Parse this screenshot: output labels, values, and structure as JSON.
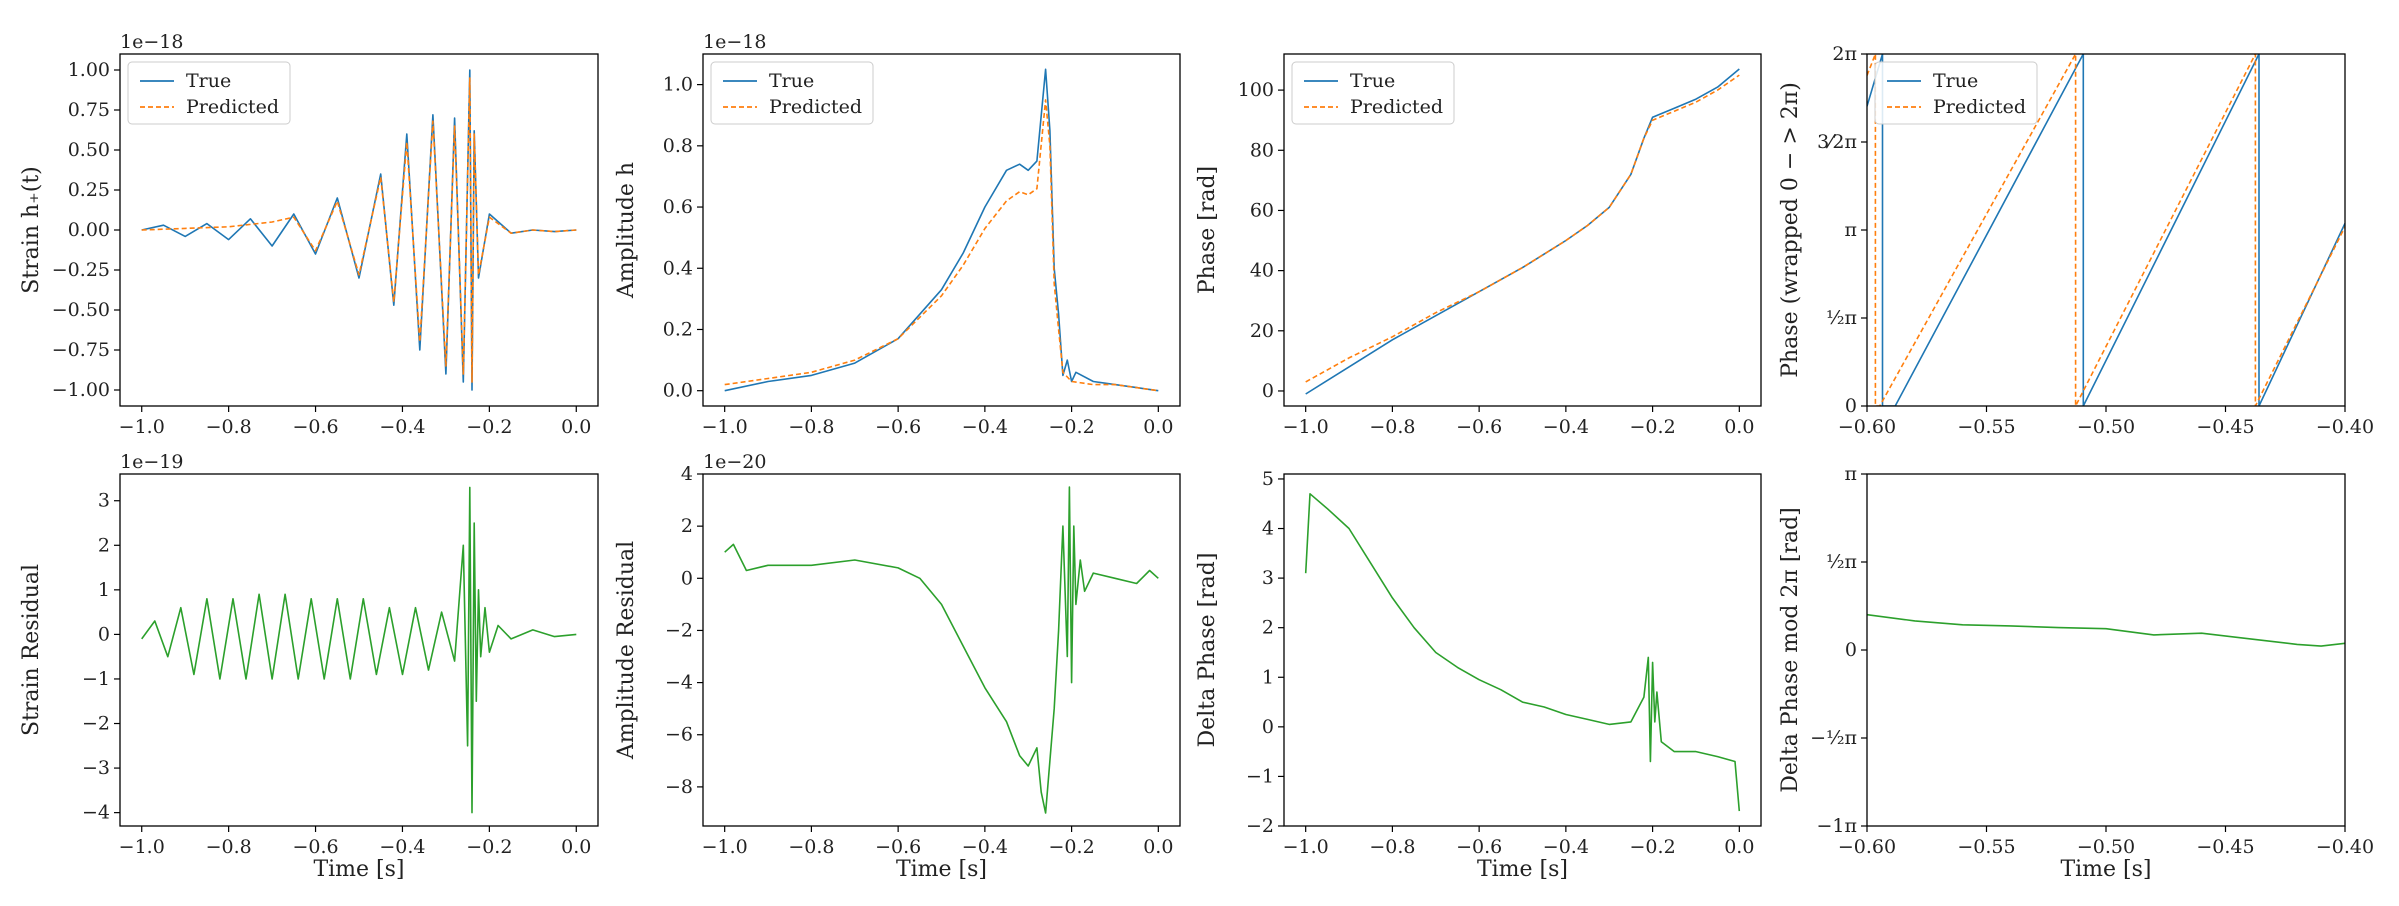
{
  "colors": {
    "true": "#1f77b4",
    "predicted": "#ff7f0e",
    "residual": "#2ca02c"
  },
  "legend": {
    "true_label": "True",
    "predicted_label": "Predicted"
  },
  "chart_data": [
    {
      "id": "strain",
      "type": "line",
      "ylabel": "Strain h₊(t)",
      "xlabel": "",
      "offset_text": "1e−18",
      "xlim": [
        -1.05,
        0.05
      ],
      "ylim": [
        -1.1,
        1.1
      ],
      "xticks": [
        -1.0,
        -0.8,
        -0.6,
        -0.4,
        -0.2,
        0.0
      ],
      "xtick_labels": [
        "−1.0",
        "−0.8",
        "−0.6",
        "−0.4",
        "−0.2",
        "0.0"
      ],
      "yticks": [
        -1.0,
        -0.75,
        -0.5,
        -0.25,
        0.0,
        0.25,
        0.5,
        0.75,
        1.0
      ],
      "ytick_labels": [
        "−1.00",
        "−0.75",
        "−0.50",
        "−0.25",
        "0.00",
        "0.25",
        "0.50",
        "0.75",
        "1.00"
      ],
      "legend": true,
      "series": [
        {
          "name": "True",
          "style": "solid",
          "color_key": "true",
          "x": [
            -1.0,
            -0.95,
            -0.9,
            -0.85,
            -0.8,
            -0.75,
            -0.7,
            -0.65,
            -0.6,
            -0.55,
            -0.5,
            -0.45,
            -0.42,
            -0.39,
            -0.36,
            -0.33,
            -0.3,
            -0.28,
            -0.26,
            -0.245,
            -0.24,
            -0.235,
            -0.225,
            -0.2,
            -0.15,
            -0.1,
            -0.05,
            0.0
          ],
          "y": [
            0.0,
            0.03,
            -0.04,
            0.04,
            -0.06,
            0.07,
            -0.1,
            0.1,
            -0.15,
            0.2,
            -0.3,
            0.35,
            -0.47,
            0.6,
            -0.75,
            0.72,
            -0.9,
            0.7,
            -0.95,
            1.0,
            -1.0,
            0.62,
            -0.3,
            0.1,
            -0.02,
            0.0,
            -0.01,
            0.0
          ]
        },
        {
          "name": "Predicted",
          "style": "dashed",
          "color_key": "predicted",
          "x": [
            -1.0,
            -0.9,
            -0.8,
            -0.7,
            -0.65,
            -0.6,
            -0.55,
            -0.5,
            -0.45,
            -0.42,
            -0.39,
            -0.36,
            -0.33,
            -0.3,
            -0.28,
            -0.26,
            -0.245,
            -0.24,
            -0.235,
            -0.225,
            -0.2,
            -0.15,
            -0.1,
            -0.05,
            0.0
          ],
          "y": [
            0.0,
            0.01,
            0.02,
            0.05,
            0.08,
            -0.13,
            0.18,
            -0.28,
            0.33,
            -0.45,
            0.55,
            -0.7,
            0.68,
            -0.85,
            0.65,
            -0.9,
            0.95,
            -0.95,
            0.6,
            -0.28,
            0.08,
            -0.02,
            0.0,
            -0.01,
            0.0
          ]
        }
      ]
    },
    {
      "id": "amplitude",
      "type": "line",
      "ylabel": "Amplitude h",
      "xlabel": "",
      "offset_text": "1e−18",
      "xlim": [
        -1.05,
        0.05
      ],
      "ylim": [
        -0.05,
        1.1
      ],
      "xticks": [
        -1.0,
        -0.8,
        -0.6,
        -0.4,
        -0.2,
        0.0
      ],
      "xtick_labels": [
        "−1.0",
        "−0.8",
        "−0.6",
        "−0.4",
        "−0.2",
        "0.0"
      ],
      "yticks": [
        0.0,
        0.2,
        0.4,
        0.6,
        0.8,
        1.0
      ],
      "ytick_labels": [
        "0.0",
        "0.2",
        "0.4",
        "0.6",
        "0.8",
        "1.0"
      ],
      "legend": true,
      "series": [
        {
          "name": "True",
          "style": "solid",
          "color_key": "true",
          "x": [
            -1.0,
            -0.9,
            -0.8,
            -0.7,
            -0.6,
            -0.5,
            -0.45,
            -0.4,
            -0.35,
            -0.32,
            -0.3,
            -0.28,
            -0.26,
            -0.25,
            -0.24,
            -0.23,
            -0.22,
            -0.21,
            -0.2,
            -0.19,
            -0.15,
            -0.1,
            -0.05,
            0.0
          ],
          "y": [
            0.0,
            0.03,
            0.05,
            0.09,
            0.17,
            0.33,
            0.45,
            0.6,
            0.72,
            0.74,
            0.72,
            0.75,
            1.05,
            0.85,
            0.4,
            0.25,
            0.05,
            0.1,
            0.03,
            0.06,
            0.03,
            0.02,
            0.01,
            0.0
          ]
        },
        {
          "name": "Predicted",
          "style": "dashed",
          "color_key": "predicted",
          "x": [
            -1.0,
            -0.9,
            -0.8,
            -0.7,
            -0.6,
            -0.5,
            -0.45,
            -0.4,
            -0.35,
            -0.32,
            -0.3,
            -0.28,
            -0.26,
            -0.25,
            -0.24,
            -0.23,
            -0.22,
            -0.2,
            -0.15,
            -0.1,
            -0.05,
            0.0
          ],
          "y": [
            0.02,
            0.04,
            0.06,
            0.1,
            0.17,
            0.31,
            0.41,
            0.53,
            0.62,
            0.65,
            0.64,
            0.66,
            0.95,
            0.8,
            0.35,
            0.2,
            0.06,
            0.03,
            0.02,
            0.02,
            0.01,
            0.0
          ]
        }
      ]
    },
    {
      "id": "phase",
      "type": "line",
      "ylabel": "Phase [rad]",
      "xlabel": "",
      "offset_text": "",
      "xlim": [
        -1.05,
        0.05
      ],
      "ylim": [
        -5,
        112
      ],
      "xticks": [
        -1.0,
        -0.8,
        -0.6,
        -0.4,
        -0.2,
        0.0
      ],
      "xtick_labels": [
        "−1.0",
        "−0.8",
        "−0.6",
        "−0.4",
        "−0.2",
        "0.0"
      ],
      "yticks": [
        0,
        20,
        40,
        60,
        80,
        100
      ],
      "ytick_labels": [
        "0",
        "20",
        "40",
        "60",
        "80",
        "100"
      ],
      "legend": true,
      "series": [
        {
          "name": "True",
          "style": "solid",
          "color_key": "true",
          "x": [
            -1.0,
            -0.9,
            -0.8,
            -0.7,
            -0.6,
            -0.5,
            -0.4,
            -0.35,
            -0.3,
            -0.25,
            -0.22,
            -0.2,
            -0.15,
            -0.1,
            -0.05,
            0.0
          ],
          "y": [
            -1.0,
            8,
            17,
            25,
            33,
            41,
            50,
            55,
            61,
            72,
            84,
            91,
            94,
            97,
            101,
            107
          ]
        },
        {
          "name": "Predicted",
          "style": "dashed",
          "color_key": "predicted",
          "x": [
            -1.0,
            -0.9,
            -0.8,
            -0.7,
            -0.6,
            -0.5,
            -0.4,
            -0.35,
            -0.3,
            -0.25,
            -0.22,
            -0.2,
            -0.15,
            -0.1,
            -0.05,
            0.0
          ],
          "y": [
            3.0,
            11,
            18,
            26,
            33,
            41,
            50,
            55,
            61,
            72,
            84,
            90,
            93,
            96,
            100,
            105
          ]
        }
      ]
    },
    {
      "id": "phase-wrapped",
      "type": "line",
      "ylabel": "Phase (wrapped 0 − > 2π)",
      "xlabel": "",
      "offset_text": "",
      "xlim": [
        -0.6,
        -0.4
      ],
      "ylim": [
        0,
        6.2832
      ],
      "xticks": [
        -0.6,
        -0.55,
        -0.5,
        -0.45,
        -0.4
      ],
      "xtick_labels": [
        "−0.60",
        "−0.55",
        "−0.50",
        "−0.45",
        "−0.40"
      ],
      "yticks": [
        0,
        1.5708,
        3.1416,
        4.7124,
        6.2832
      ],
      "ytick_labels": [
        "0",
        "½π",
        "π",
        "3⁄2π",
        "2π"
      ],
      "legend": true,
      "series": [
        {
          "name": "True",
          "style": "solid",
          "color_key": "true",
          "x": [
            -0.6,
            -0.5935,
            -0.5935,
            -0.5882,
            -0.5882,
            -0.5882,
            -0.5095,
            -0.5095,
            -0.5095,
            -0.436,
            -0.436,
            -0.436,
            -0.4
          ],
          "y": [
            5.35,
            6.2832,
            0,
            0.0,
            null,
            0,
            6.2832,
            0,
            0,
            6.2832,
            0,
            0,
            3.26
          ]
        },
        {
          "name": "Predicted",
          "style": "dashed",
          "color_key": "predicted",
          "x": [
            -0.6,
            -0.5965,
            -0.5965,
            -0.5947,
            -0.5947,
            -0.5127,
            -0.5127,
            -0.4375,
            -0.4375,
            -0.4
          ],
          "y": [
            5.9,
            6.2832,
            0,
            0.0,
            0,
            6.2832,
            0,
            6.2832,
            0,
            3.2
          ]
        }
      ]
    },
    {
      "id": "strain-residual",
      "type": "line",
      "ylabel": "Strain Residual",
      "xlabel": "Time [s]",
      "offset_text": "1e−19",
      "xlim": [
        -1.05,
        0.05
      ],
      "ylim": [
        -4.3,
        3.6
      ],
      "xticks": [
        -1.0,
        -0.8,
        -0.6,
        -0.4,
        -0.2,
        0.0
      ],
      "xtick_labels": [
        "−1.0",
        "−0.8",
        "−0.6",
        "−0.4",
        "−0.2",
        "0.0"
      ],
      "yticks": [
        -4,
        -3,
        -2,
        -1,
        0,
        1,
        2,
        3
      ],
      "ytick_labels": [
        "−4",
        "−3",
        "−2",
        "−1",
        "0",
        "1",
        "2",
        "3"
      ],
      "legend": false,
      "series": [
        {
          "name": "residual",
          "style": "solid",
          "color_key": "residual",
          "x": [
            -1.0,
            -0.97,
            -0.94,
            -0.91,
            -0.88,
            -0.85,
            -0.82,
            -0.79,
            -0.76,
            -0.73,
            -0.7,
            -0.67,
            -0.64,
            -0.61,
            -0.58,
            -0.55,
            -0.52,
            -0.49,
            -0.46,
            -0.43,
            -0.4,
            -0.37,
            -0.34,
            -0.31,
            -0.28,
            -0.26,
            -0.25,
            -0.245,
            -0.24,
            -0.235,
            -0.23,
            -0.225,
            -0.22,
            -0.21,
            -0.2,
            -0.18,
            -0.15,
            -0.1,
            -0.05,
            0.0
          ],
          "y": [
            -0.1,
            0.3,
            -0.5,
            0.6,
            -0.9,
            0.8,
            -1.0,
            0.8,
            -1.0,
            0.9,
            -1.0,
            0.9,
            -1.0,
            0.8,
            -1.0,
            0.8,
            -1.0,
            0.8,
            -0.9,
            0.6,
            -0.9,
            0.6,
            -0.8,
            0.5,
            -0.6,
            2.0,
            -2.5,
            3.3,
            -4.0,
            2.5,
            -1.5,
            1.0,
            -0.5,
            0.6,
            -0.4,
            0.2,
            -0.1,
            0.1,
            -0.05,
            0.0
          ]
        }
      ]
    },
    {
      "id": "amplitude-residual",
      "type": "line",
      "ylabel": "Amplitude Residual",
      "xlabel": "Time [s]",
      "offset_text": "1e−20",
      "xlim": [
        -1.05,
        0.05
      ],
      "ylim": [
        -9.5,
        4.0
      ],
      "xticks": [
        -1.0,
        -0.8,
        -0.6,
        -0.4,
        -0.2,
        0.0
      ],
      "xtick_labels": [
        "−1.0",
        "−0.8",
        "−0.6",
        "−0.4",
        "−0.2",
        "0.0"
      ],
      "yticks": [
        -8,
        -6,
        -4,
        -2,
        0,
        2,
        4
      ],
      "ytick_labels": [
        "−8",
        "−6",
        "−4",
        "−2",
        "0",
        "2",
        "4"
      ],
      "legend": false,
      "series": [
        {
          "name": "residual",
          "style": "solid",
          "color_key": "residual",
          "x": [
            -1.0,
            -0.98,
            -0.95,
            -0.9,
            -0.8,
            -0.7,
            -0.6,
            -0.55,
            -0.5,
            -0.45,
            -0.4,
            -0.35,
            -0.32,
            -0.3,
            -0.28,
            -0.27,
            -0.26,
            -0.25,
            -0.24,
            -0.23,
            -0.22,
            -0.21,
            -0.205,
            -0.2,
            -0.195,
            -0.19,
            -0.18,
            -0.17,
            -0.15,
            -0.1,
            -0.05,
            -0.02,
            0.0
          ],
          "y": [
            1.0,
            1.3,
            0.3,
            0.5,
            0.5,
            0.7,
            0.4,
            0.0,
            -1.0,
            -2.6,
            -4.2,
            -5.5,
            -6.8,
            -7.2,
            -6.5,
            -8.2,
            -9.0,
            -7.0,
            -5.0,
            -2.0,
            2.0,
            -3.0,
            3.5,
            -4.0,
            2.0,
            -1.0,
            0.7,
            -0.5,
            0.2,
            0.0,
            -0.2,
            0.3,
            0.0
          ]
        }
      ]
    },
    {
      "id": "delta-phase",
      "type": "line",
      "ylabel": "Delta Phase [rad]",
      "xlabel": "Time [s]",
      "offset_text": "",
      "xlim": [
        -1.05,
        0.05
      ],
      "ylim": [
        -2.0,
        5.1
      ],
      "xticks": [
        -1.0,
        -0.8,
        -0.6,
        -0.4,
        -0.2,
        0.0
      ],
      "xtick_labels": [
        "−1.0",
        "−0.8",
        "−0.6",
        "−0.4",
        "−0.2",
        "0.0"
      ],
      "yticks": [
        -2,
        -1,
        0,
        1,
        2,
        3,
        4,
        5
      ],
      "ytick_labels": [
        "−2",
        "−1",
        "0",
        "1",
        "2",
        "3",
        "4",
        "5"
      ],
      "legend": false,
      "series": [
        {
          "name": "residual",
          "style": "solid",
          "color_key": "residual",
          "x": [
            -1.0,
            -0.99,
            -0.95,
            -0.9,
            -0.85,
            -0.8,
            -0.75,
            -0.7,
            -0.65,
            -0.6,
            -0.55,
            -0.5,
            -0.45,
            -0.4,
            -0.35,
            -0.3,
            -0.25,
            -0.22,
            -0.21,
            -0.205,
            -0.2,
            -0.195,
            -0.19,
            -0.18,
            -0.15,
            -0.1,
            -0.05,
            -0.01,
            0.0
          ],
          "y": [
            3.1,
            4.7,
            4.4,
            4.0,
            3.3,
            2.6,
            2.0,
            1.5,
            1.2,
            0.95,
            0.75,
            0.5,
            0.4,
            0.25,
            0.15,
            0.05,
            0.1,
            0.6,
            1.4,
            -0.7,
            1.3,
            0.1,
            0.7,
            -0.3,
            -0.5,
            -0.5,
            -0.6,
            -0.7,
            -1.7
          ]
        }
      ]
    },
    {
      "id": "delta-phase-mod",
      "type": "line",
      "ylabel": "Delta Phase mod 2π [rad]",
      "xlabel": "Time [s]",
      "offset_text": "",
      "xlim": [
        -0.6,
        -0.4
      ],
      "ylim": [
        -3.1416,
        3.1416
      ],
      "xticks": [
        -0.6,
        -0.55,
        -0.5,
        -0.45,
        -0.4
      ],
      "xtick_labels": [
        "−0.60",
        "−0.55",
        "−0.50",
        "−0.45",
        "−0.40"
      ],
      "yticks": [
        -3.1416,
        -1.5708,
        0,
        1.5708,
        3.1416
      ],
      "ytick_labels": [
        "−1π",
        "−½π",
        "0",
        "½π",
        "π"
      ],
      "legend": false,
      "series": [
        {
          "name": "residual",
          "style": "solid",
          "color_key": "residual",
          "x": [
            -0.6,
            -0.58,
            -0.56,
            -0.54,
            -0.52,
            -0.5,
            -0.48,
            -0.46,
            -0.44,
            -0.42,
            -0.41,
            -0.4
          ],
          "y": [
            0.63,
            0.52,
            0.45,
            0.43,
            0.4,
            0.38,
            0.27,
            0.3,
            0.2,
            0.1,
            0.07,
            0.12
          ]
        }
      ]
    }
  ]
}
